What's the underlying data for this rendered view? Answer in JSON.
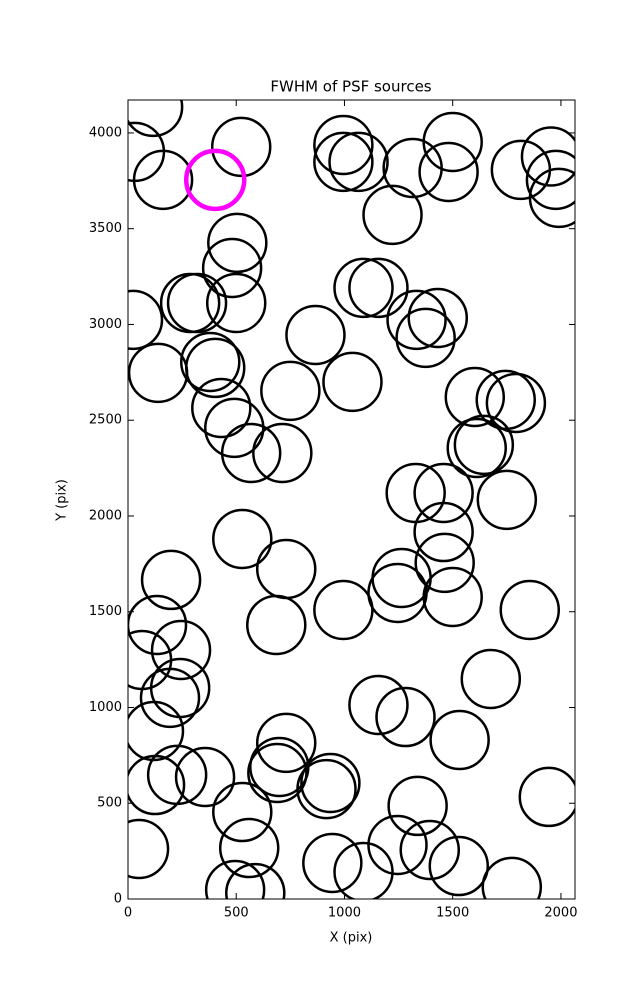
{
  "chart_data": {
    "type": "scatter",
    "title": "FWHM of PSF sources",
    "x_label": "X (pix)",
    "y_label": "Y (pix)",
    "xlim": [
      0,
      2065
    ],
    "ylim": [
      0,
      4172
    ],
    "xticks": [
      0,
      500,
      1000,
      1500,
      2000
    ],
    "yticks": [
      0,
      500,
      1000,
      1500,
      2000,
      2500,
      3000,
      3500,
      4000
    ],
    "grid": false,
    "series": [
      {
        "color": "#000000",
        "x": [
          116,
          32,
          162,
          523,
          995,
          995,
          1065,
          1315,
          1500,
          1481,
          1815,
          1954,
          1977,
          1991,
          1222,
          505,
          481,
          287,
          319,
          500,
          23,
          1088,
          1157,
          1333,
          1431,
          1375,
          866,
          380,
          403,
          139,
          1037,
          750,
          1602,
          1745,
          1792,
          431,
          491,
          569,
          713,
          1611,
          1644,
          1329,
          1458,
          1458,
          1750,
          528,
          731,
          199,
          1264,
          1245,
          1463,
          1500,
          995,
          1856,
          685,
          134,
          65,
          245,
          241,
          194,
          120,
          1157,
          1282,
          1676,
          1532,
          731,
          699,
          690,
          935,
          917,
          125,
          227,
          356,
          528,
          1338,
          1944,
          560,
          51,
          1245,
          1394,
          944,
          1088,
          1528,
          495,
          588,
          1773
        ],
        "y": [
          4136,
          3901,
          3755,
          3927,
          3937,
          3849,
          3849,
          3817,
          3953,
          3796,
          3807,
          3877,
          3755,
          3661,
          3572,
          3426,
          3295,
          3112,
          3112,
          3112,
          3024,
          3191,
          3191,
          3024,
          3034,
          2930,
          2945,
          2804,
          2773,
          2747,
          2700,
          2653,
          2621,
          2606,
          2590,
          2564,
          2460,
          2329,
          2329,
          2355,
          2371,
          2120,
          2120,
          1916,
          2084,
          1880,
          1723,
          1666,
          1676,
          1598,
          1755,
          1577,
          1509,
          1509,
          1431,
          1431,
          1248,
          1300,
          1102,
          1050,
          877,
          1013,
          950,
          1149,
          830,
          815,
          689,
          658,
          606,
          574,
          595,
          648,
          637,
          454,
          486,
          533,
          266,
          261,
          282,
          256,
          188,
          141,
          172,
          47,
          31,
          63
        ]
      },
      {
        "color": "#ff00ff",
        "x": [
          403
        ],
        "y": [
          3755
        ]
      }
    ]
  }
}
